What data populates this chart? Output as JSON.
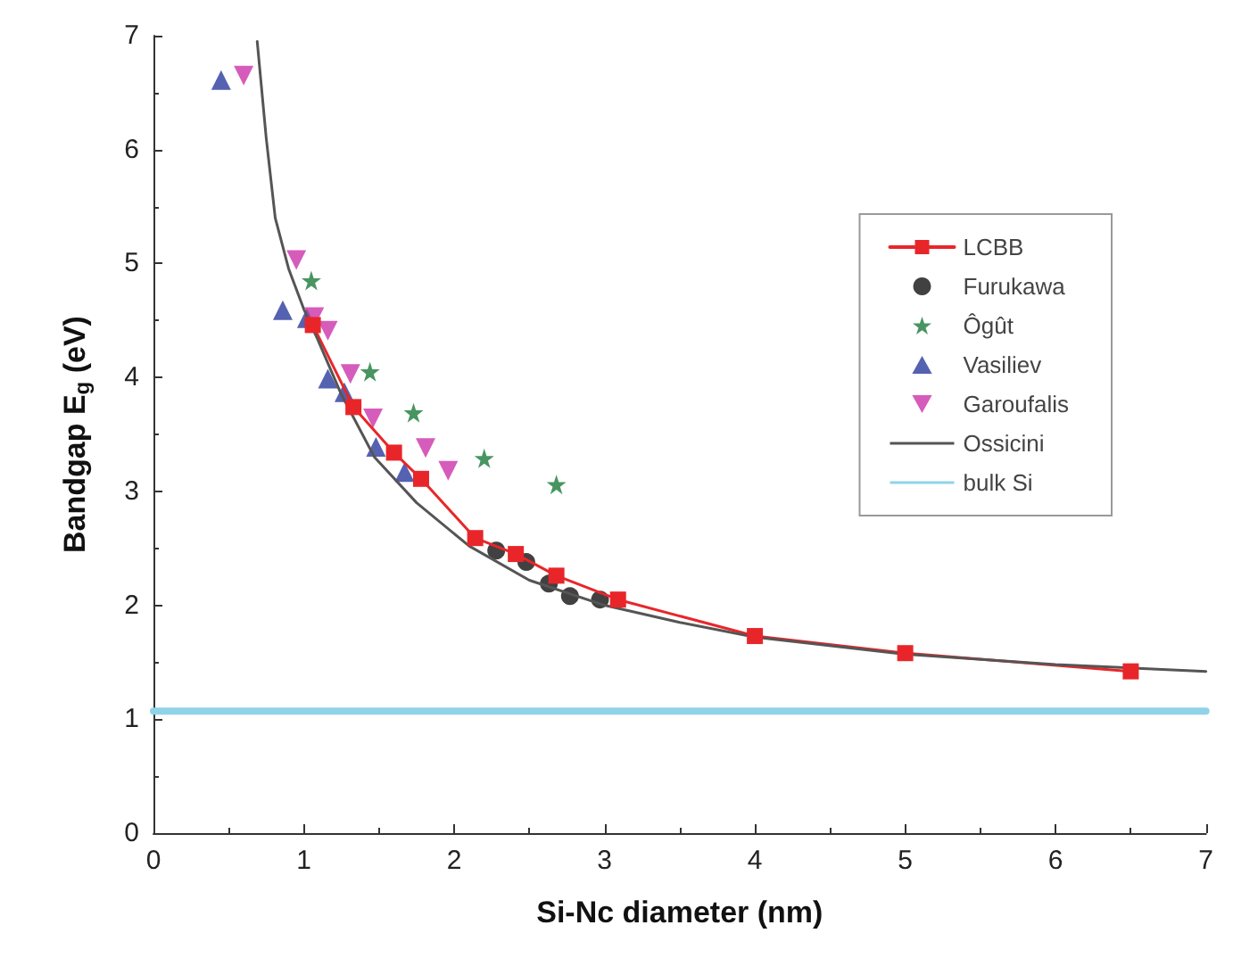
{
  "chart_data": {
    "type": "scatter",
    "xlabel": "Si-Nc diameter (nm)",
    "ylabel": "Bandgap E$_{g}$ (eV)",
    "xlim": [
      0,
      7
    ],
    "xticks": [
      0,
      1,
      2,
      3,
      4,
      5,
      6,
      7
    ],
    "ylim": [
      0,
      7
    ],
    "yticks": [
      0,
      1,
      2,
      3,
      4,
      5,
      6,
      7
    ],
    "grid": false,
    "legend": "top right",
    "series": [
      {
        "name": "LCBB",
        "type": "line",
        "marker": "square",
        "color": "#e8262a",
        "x": [
          1.06,
          1.33,
          1.6,
          1.78,
          2.14,
          2.41,
          2.68,
          3.09,
          4,
          5,
          6.5
        ],
        "values": [
          4.46,
          3.74,
          3.34,
          3.11,
          2.59,
          2.45,
          2.26,
          2.05,
          1.73,
          1.58,
          1.42
        ]
      },
      {
        "name": "Furukawa",
        "marker": "circle",
        "color": "#111111",
        "x": [
          2.28,
          2.48,
          2.63,
          2.77,
          2.97
        ],
        "values": [
          2.48,
          2.38,
          2.19,
          2.08,
          2.05
        ]
      },
      {
        "name": "Ôgût",
        "marker": "star",
        "color": "#1a7a3a",
        "x": [
          1.05,
          1.44,
          1.73,
          2.2,
          2.68
        ],
        "values": [
          4.85,
          4.05,
          3.69,
          3.29,
          3.06
        ]
      },
      {
        "name": "Vasiliev",
        "marker": "triangle",
        "color": "#2b3a9e",
        "x": [
          0.45,
          0.86,
          1.02,
          1.16,
          1.27,
          1.48,
          1.67
        ],
        "values": [
          6.61,
          4.59,
          4.52,
          3.99,
          3.87,
          3.39,
          3.17
        ]
      },
      {
        "name": "Garoufalis",
        "marker": "triangle-down",
        "color": "#cc33aa",
        "x": [
          0.6,
          0.95,
          1.07,
          1.16,
          1.31,
          1.46,
          1.81,
          1.96
        ],
        "values": [
          6.65,
          5.03,
          4.53,
          4.41,
          4.03,
          3.64,
          3.38,
          3.18
        ]
      },
      {
        "name": "Ossicini",
        "type": "line",
        "marker": "none",
        "color": "#555555",
        "x": [
          0.69,
          0.75,
          0.81,
          0.9,
          1.0,
          1.09,
          1.25,
          1.47,
          1.75,
          2.1,
          2.5,
          3.0,
          3.5,
          4,
          5,
          6,
          7
        ],
        "values": [
          6.95,
          6.1,
          5.4,
          4.95,
          4.6,
          4.34,
          3.85,
          3.3,
          2.9,
          2.52,
          2.22,
          2.0,
          1.85,
          1.72,
          1.57,
          1.48,
          1.42
        ]
      },
      {
        "name": "bulk Si",
        "type": "line",
        "marker": "none",
        "color": "#8fd3e8",
        "x": [
          0,
          7
        ],
        "values": [
          1.07,
          1.07
        ]
      }
    ]
  }
}
